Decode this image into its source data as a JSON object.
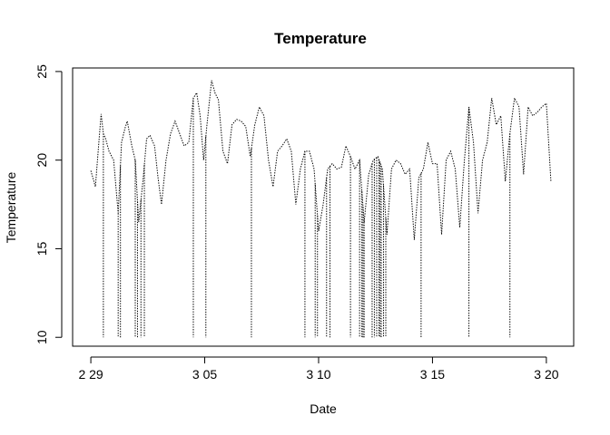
{
  "chart_data": {
    "type": "line",
    "title": "Temperature",
    "xlabel": "Date",
    "ylabel": "Temperature",
    "x_ticks": [
      {
        "value": 0,
        "label": "2 29"
      },
      {
        "value": 5,
        "label": "3 05"
      },
      {
        "value": 10,
        "label": "3 10"
      },
      {
        "value": 15,
        "label": "3 15"
      },
      {
        "value": 20,
        "label": "3 20"
      }
    ],
    "y_ticks": [
      10,
      15,
      20,
      25
    ],
    "xlim": [
      -0.8,
      21.2
    ],
    "ylim": [
      9.5,
      25.2
    ],
    "line_style": "dotted",
    "grid": false,
    "series": [
      {
        "x": [
          0.0,
          0.2,
          0.35,
          0.45,
          0.55,
          0.65,
          0.8,
          1.0,
          1.2,
          1.35,
          1.5,
          1.6,
          1.8,
          1.95,
          2.1,
          2.3,
          2.45,
          2.6,
          2.8,
          2.95,
          3.1,
          3.3,
          3.5,
          3.7,
          3.9,
          4.1,
          4.3,
          4.5,
          4.65,
          4.8,
          4.95,
          5.1,
          5.3,
          5.45,
          5.6,
          5.8,
          6.0,
          6.2,
          6.4,
          6.6,
          6.8,
          7.0,
          7.2,
          7.4,
          7.6,
          7.8,
          8.0,
          8.2,
          8.4,
          8.6,
          8.8,
          9.0,
          9.2,
          9.4,
          9.6,
          9.8,
          10.0,
          10.2,
          10.4,
          10.6,
          10.8,
          11.0,
          11.2,
          11.4,
          11.6,
          11.8,
          12.0,
          12.2,
          12.4,
          12.6,
          12.8,
          13.0,
          13.2,
          13.4,
          13.6,
          13.8,
          14.0,
          14.2,
          14.4,
          14.6,
          14.8,
          15.0,
          15.2,
          15.4,
          15.6,
          15.8,
          16.0,
          16.2,
          16.4,
          16.6,
          16.8,
          17.0,
          17.2,
          17.4,
          17.6,
          17.8,
          18.0,
          18.2,
          18.4,
          18.6,
          18.8,
          19.0,
          19.2,
          19.4,
          19.6,
          19.8,
          20.0,
          20.2
        ],
        "y": [
          19.4,
          18.5,
          21.0,
          22.6,
          21.5,
          21.2,
          20.5,
          20.0,
          17.0,
          21.0,
          21.8,
          22.2,
          20.8,
          20.0,
          16.5,
          19.0,
          21.2,
          21.4,
          20.8,
          19.0,
          17.5,
          20.0,
          21.5,
          22.2,
          21.5,
          20.8,
          21.0,
          23.5,
          23.8,
          22.5,
          20.0,
          22.0,
          24.5,
          23.8,
          23.4,
          20.5,
          19.8,
          22.0,
          22.3,
          22.2,
          21.9,
          20.2,
          22.0,
          23.0,
          22.5,
          20.0,
          18.5,
          20.5,
          20.8,
          21.2,
          20.5,
          17.5,
          19.5,
          20.5,
          20.5,
          19.5,
          16.0,
          17.5,
          19.5,
          19.8,
          19.5,
          19.6,
          20.8,
          20.2,
          19.5,
          20.0,
          16.5,
          19.2,
          20.0,
          20.2,
          19.5,
          15.8,
          19.5,
          20.0,
          19.8,
          19.2,
          19.5,
          15.5,
          19.0,
          19.5,
          21.0,
          19.8,
          19.8,
          15.8,
          20.0,
          20.5,
          19.5,
          16.2,
          20.0,
          23.0,
          21.0,
          17.0,
          20.0,
          21.0,
          23.5,
          22.0,
          22.5,
          18.8,
          21.5,
          23.5,
          23.0,
          19.2,
          23.0,
          22.5,
          22.7,
          23.0,
          23.2,
          18.8
        ],
        "drops_to": 10,
        "drop_x": [
          0.55,
          1.2,
          1.3,
          1.95,
          2.05,
          2.2,
          2.35,
          4.5,
          5.05,
          7.05,
          9.4,
          9.85,
          9.95,
          10.35,
          10.5,
          11.4,
          11.8,
          11.9,
          11.95,
          12.0,
          12.35,
          12.45,
          12.55,
          12.65,
          12.7,
          12.75,
          12.85,
          12.95,
          14.5,
          16.6,
          18.4
        ]
      }
    ]
  }
}
